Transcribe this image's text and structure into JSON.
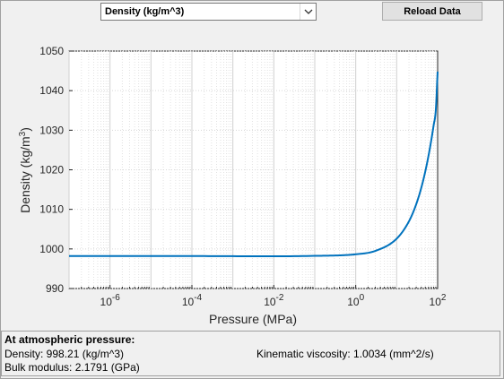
{
  "toolbar": {
    "quantity_select_value": "Density (kg/m^3)",
    "reload_label": "Reload Data"
  },
  "chart_data": {
    "type": "line",
    "xlabel": "Pressure (MPa)",
    "ylabel": "Density (kg/m^3)",
    "xscale": "log",
    "xlim": [
      1e-07,
      100
    ],
    "ylim": [
      990,
      1050
    ],
    "x_ticks": [
      "10^-6",
      "10^-4",
      "10^-2",
      "10^0",
      "10^2"
    ],
    "y_ticks": [
      "990",
      "1000",
      "1010",
      "1020",
      "1030",
      "1040",
      "1050"
    ],
    "grid": "minor-and-major",
    "series": [
      {
        "color": "#0072bd",
        "x": [
          1e-07,
          0.0001,
          0.1,
          1,
          3,
          10,
          20,
          30,
          40,
          50,
          60,
          70,
          80,
          90,
          100
        ],
        "y": [
          998.2,
          998.2,
          998.25,
          998.65,
          999.5,
          1002.6,
          1007.0,
          1011.3,
          1015.5,
          1019.6,
          1023.6,
          1027.5,
          1031.3,
          1035.0,
          1044.8
        ]
      }
    ]
  },
  "info_panel": {
    "heading": "At atmospheric pressure:",
    "density": "Density: 998.21 (kg/m^3)",
    "bulk_modulus": "Bulk modulus: 2.1791 (GPa)",
    "kinematic_viscosity": "Kinematic viscosity: 1.0034 (mm^2/s)"
  }
}
